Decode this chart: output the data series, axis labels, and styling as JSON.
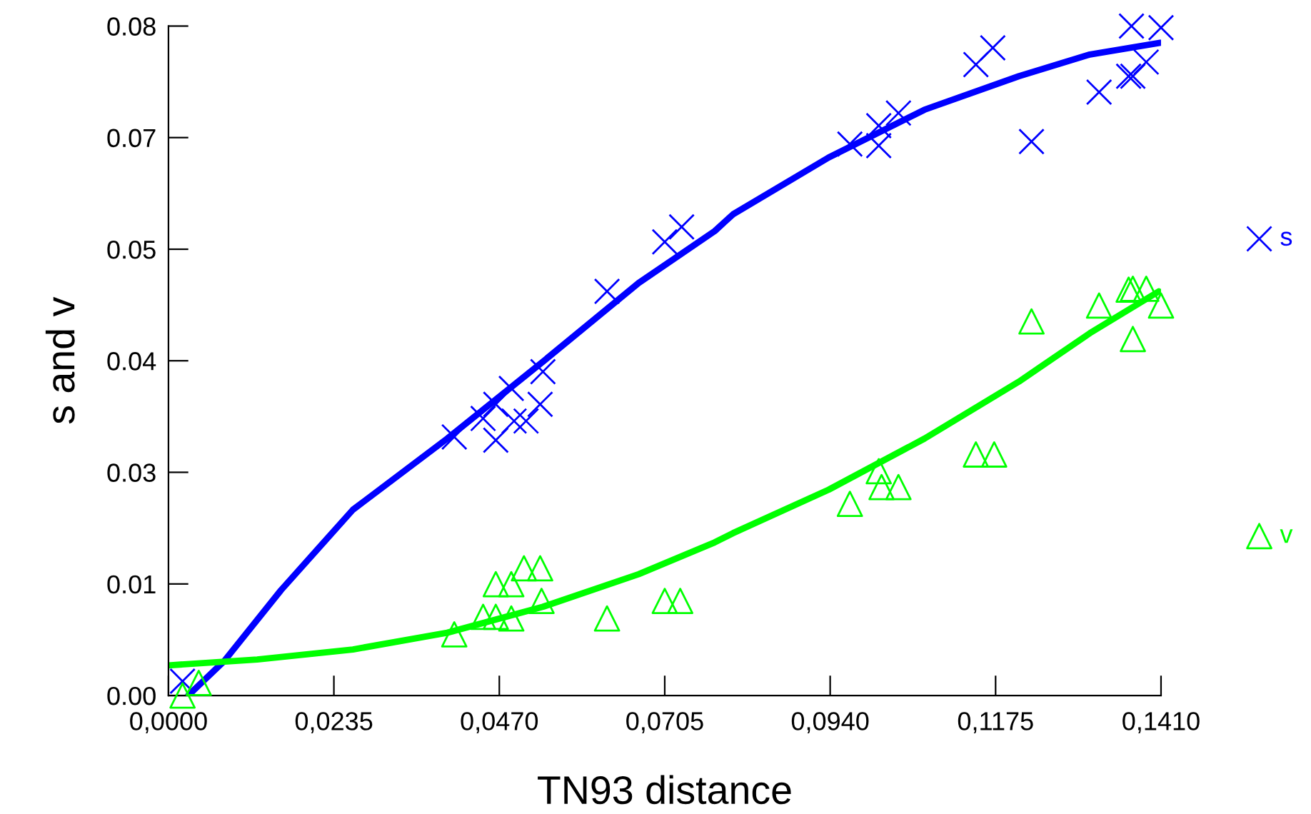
{
  "chart_data": {
    "type": "scatter",
    "xlabel": "TN93 distance",
    "ylabel": "s and v",
    "xlim": [
      0,
      0.141
    ],
    "ylim": [
      0,
      0.08
    ],
    "xticks": [
      {
        "value": 0,
        "label": "0,0000"
      },
      {
        "value": 0.0235,
        "label": "0,0235"
      },
      {
        "value": 0.047,
        "label": "0,0470"
      },
      {
        "value": 0.0705,
        "label": "0,0705"
      },
      {
        "value": 0.094,
        "label": "0,0940"
      },
      {
        "value": 0.1175,
        "label": "0,1175"
      },
      {
        "value": 0.141,
        "label": "0,1410"
      }
    ],
    "yticks": [
      {
        "value": 0,
        "label": "0.00"
      },
      {
        "value": 0.01333,
        "label": "0.01"
      },
      {
        "value": 0.02667,
        "label": "0.03"
      },
      {
        "value": 0.04,
        "label": "0.04"
      },
      {
        "value": 0.05333,
        "label": "0.05"
      },
      {
        "value": 0.06667,
        "label": "0.07"
      },
      {
        "value": 0.08,
        "label": "0.08"
      }
    ],
    "grid": false,
    "legend": "right",
    "series": [
      {
        "name": "s",
        "type": "scatter",
        "marker": "cross",
        "color": "#0000ff",
        "x": [
          0.002,
          0.0406,
          0.0447,
          0.0465,
          0.0465,
          0.0487,
          0.0491,
          0.0508,
          0.0528,
          0.0532,
          0.0623,
          0.0705,
          0.0729,
          0.0968,
          0.1009,
          0.1009,
          0.1037,
          0.1147,
          0.1171,
          0.1226,
          0.1322,
          0.1364,
          0.137,
          0.1368,
          0.1389,
          0.141
        ],
        "values": [
          0.0017,
          0.0309,
          0.0331,
          0.0305,
          0.0348,
          0.0367,
          0.0328,
          0.0328,
          0.0348,
          0.0387,
          0.0483,
          0.0542,
          0.056,
          0.0659,
          0.0681,
          0.0657,
          0.0696,
          0.0754,
          0.0774,
          0.0662,
          0.0721,
          0.074,
          0.074,
          0.08,
          0.0757,
          0.0798
        ]
      },
      {
        "name": "v",
        "type": "scatter",
        "marker": "triangle",
        "color": "#00ff00",
        "x": [
          0.002,
          0.0043,
          0.0406,
          0.0447,
          0.0465,
          0.0465,
          0.0487,
          0.0487,
          0.0505,
          0.0528,
          0.053,
          0.0623,
          0.0705,
          0.0727,
          0.0968,
          0.1009,
          0.1013,
          0.1037,
          0.1147,
          0.1173,
          0.1226,
          0.1322,
          0.1364,
          0.137,
          0.1389,
          0.141,
          0.137
        ],
        "values": [
          0.0,
          0.0015,
          0.0073,
          0.0094,
          0.0094,
          0.0133,
          0.0133,
          0.0092,
          0.0152,
          0.0152,
          0.0113,
          0.0092,
          0.0113,
          0.0113,
          0.0229,
          0.0268,
          0.0249,
          0.0249,
          0.0288,
          0.0288,
          0.0447,
          0.0466,
          0.0485,
          0.0486,
          0.0486,
          0.0466,
          0.0426
        ]
      },
      {
        "type": "line",
        "marker": "none",
        "line_style": "solid",
        "color": "#0000ff",
        "x": [
          0.0028,
          0.0079,
          0.016,
          0.0262,
          0.0396,
          0.0532,
          0.0668,
          0.0776,
          0.0802,
          0.0938,
          0.1074,
          0.1208,
          0.1309,
          0.1409
        ],
        "values": [
          0.0,
          0.0041,
          0.0126,
          0.0222,
          0.0307,
          0.0399,
          0.0493,
          0.0555,
          0.0575,
          0.0643,
          0.07,
          0.074,
          0.0766,
          0.078
        ]
      },
      {
        "type": "line",
        "marker": "none",
        "line_style": "solid",
        "color": "#00ff00",
        "x": [
          0.0,
          0.0126,
          0.0262,
          0.0396,
          0.0532,
          0.0668,
          0.0776,
          0.0802,
          0.0938,
          0.1074,
          0.1208,
          0.1309,
          0.1407
        ],
        "values": [
          0.0036,
          0.0043,
          0.0055,
          0.0075,
          0.0106,
          0.0145,
          0.0183,
          0.0194,
          0.0246,
          0.0307,
          0.0375,
          0.0433,
          0.0483
        ]
      }
    ]
  }
}
